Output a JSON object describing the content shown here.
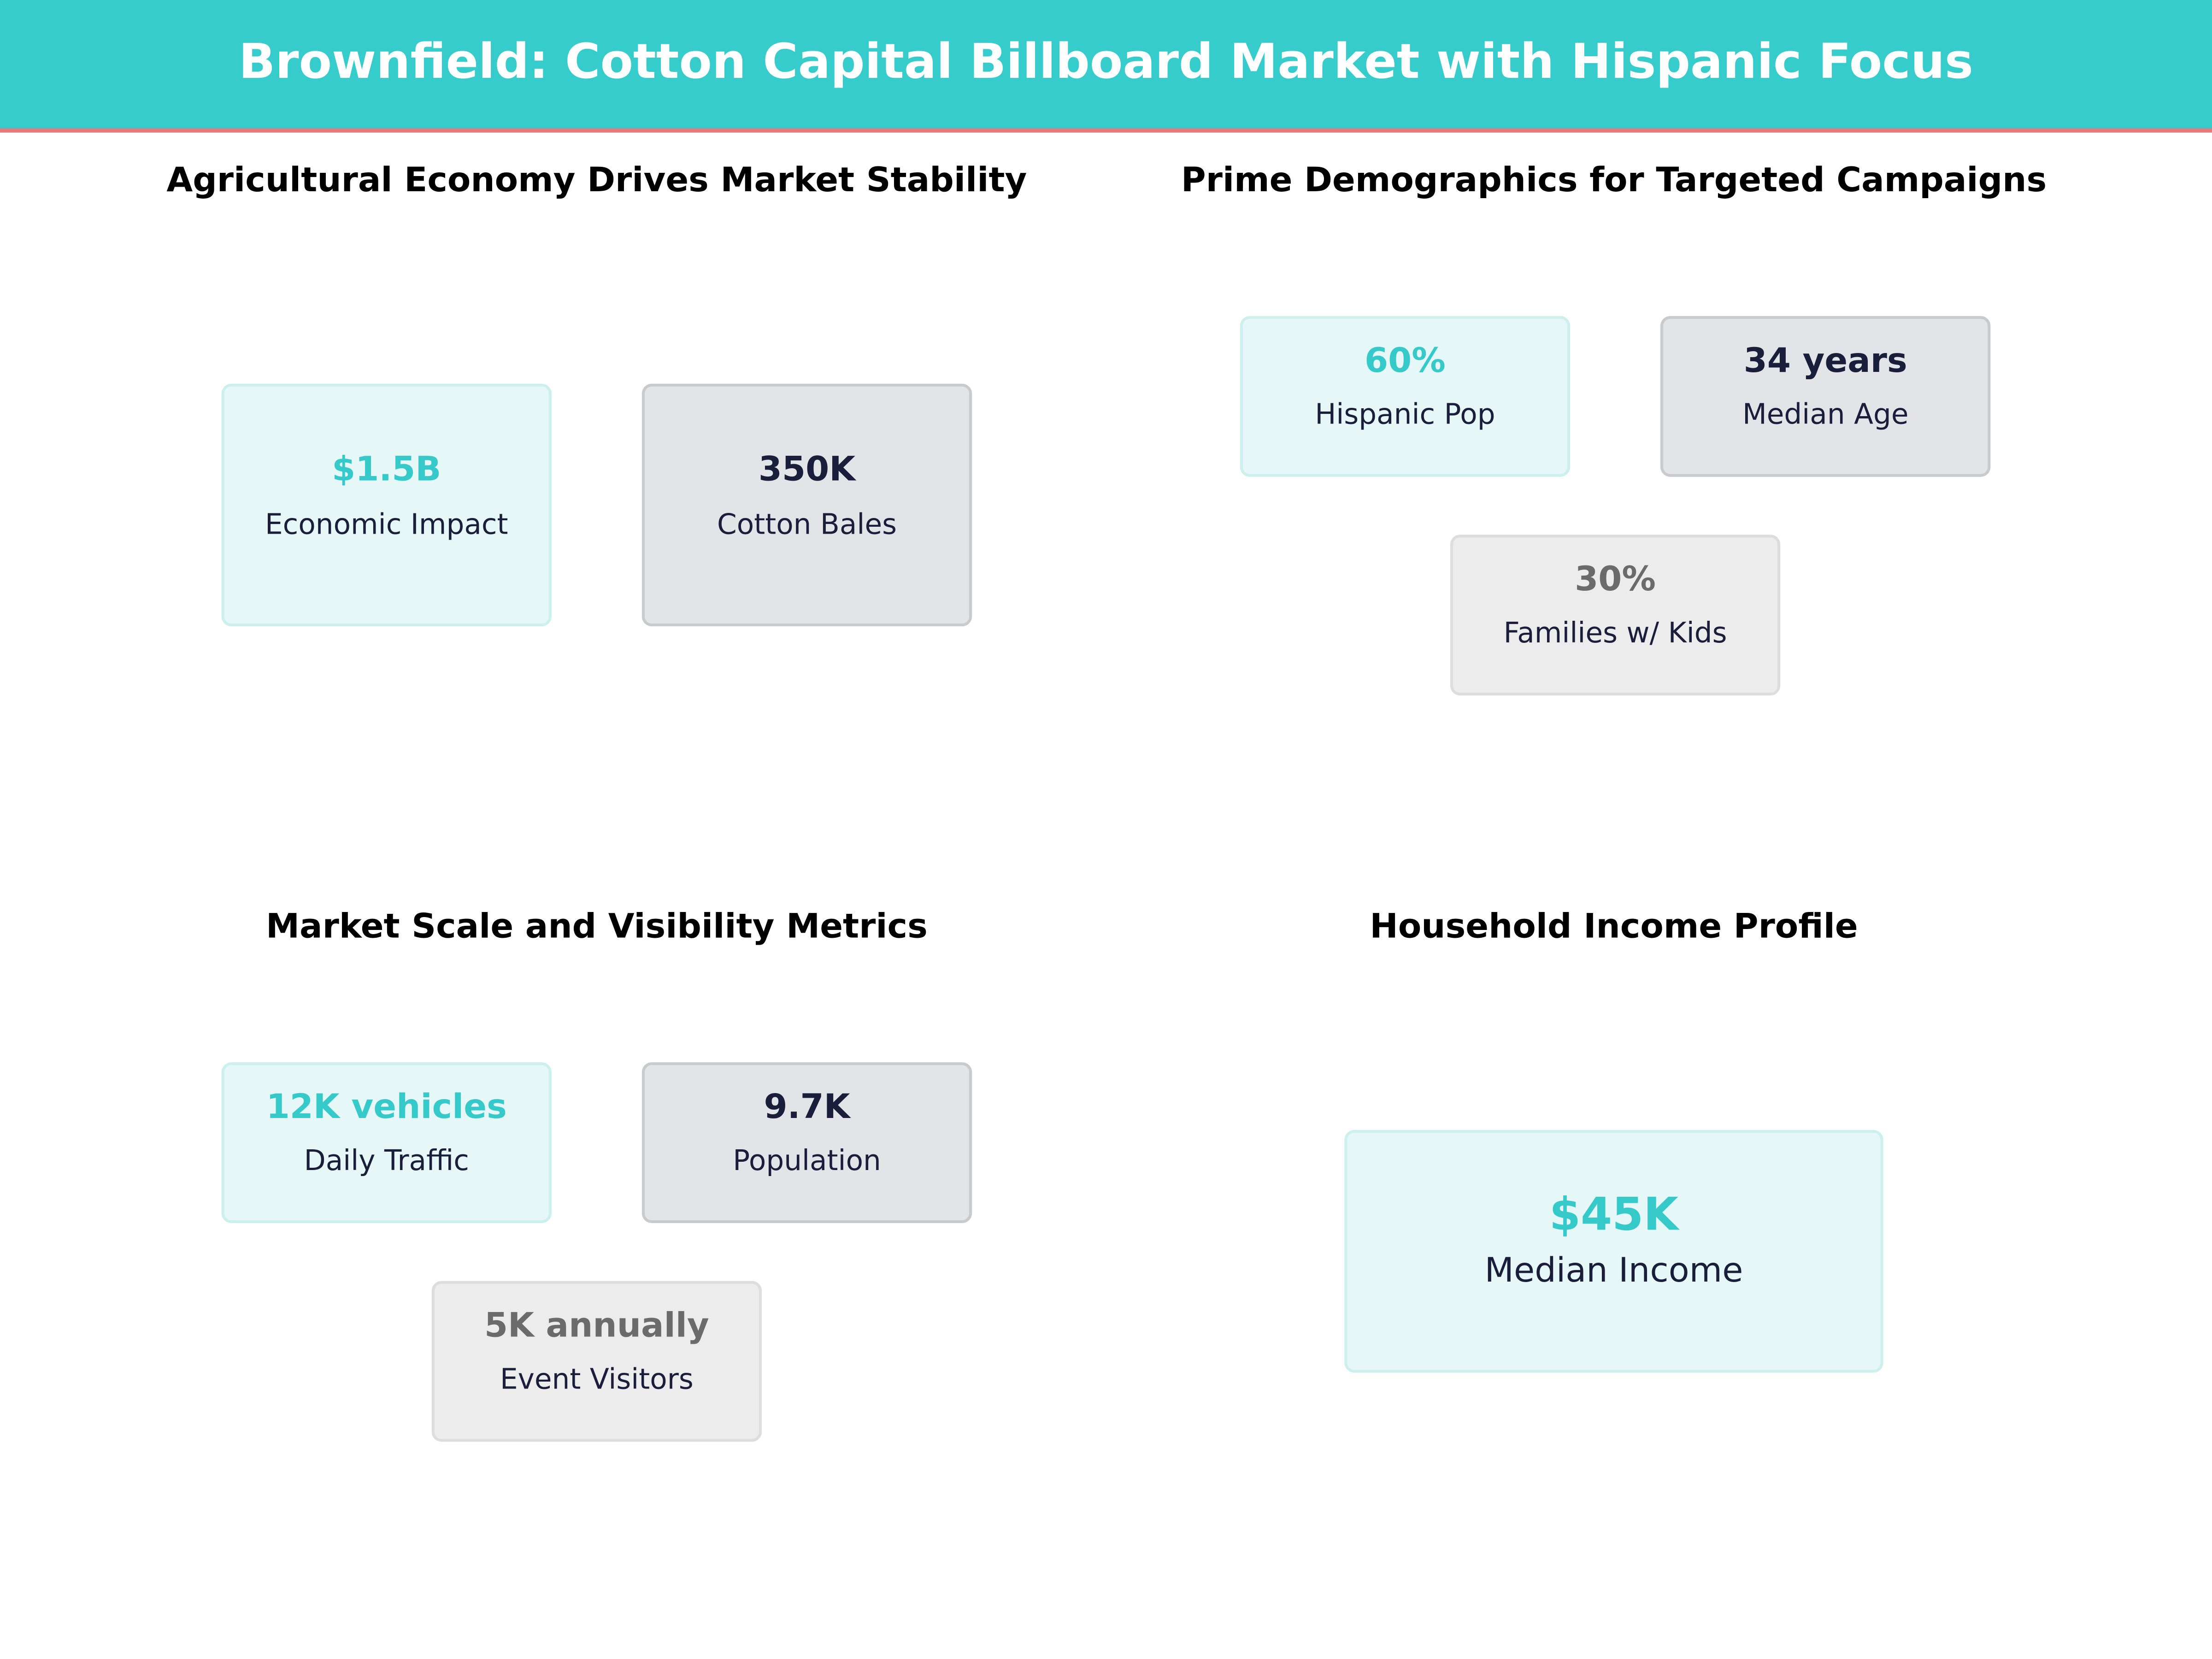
{
  "header": {
    "title": "Brownfield: Cotton Capital Billboard Market with Hispanic Focus"
  },
  "panels": [
    {
      "title": "Agricultural Economy Drives Market Stability",
      "cards": [
        {
          "value": "$1.5B",
          "label": "Economic Impact"
        },
        {
          "value": "350K",
          "label": "Cotton Bales"
        }
      ]
    },
    {
      "title": "Prime Demographics for Targeted Campaigns",
      "cards": [
        {
          "value": "60%",
          "label": "Hispanic Pop"
        },
        {
          "value": "34 years",
          "label": "Median Age"
        },
        {
          "value": "30%",
          "label": "Families w/ Kids"
        }
      ]
    },
    {
      "title": "Market Scale and Visibility Metrics",
      "cards": [
        {
          "value": "12K vehicles",
          "label": "Daily Traffic"
        },
        {
          "value": "9.7K",
          "label": "Population"
        },
        {
          "value": "5K annually",
          "label": "Event Visitors"
        }
      ]
    },
    {
      "title": "Household Income Profile",
      "cards": [
        {
          "value": "$45K",
          "label": "Median Income"
        }
      ]
    }
  ]
}
